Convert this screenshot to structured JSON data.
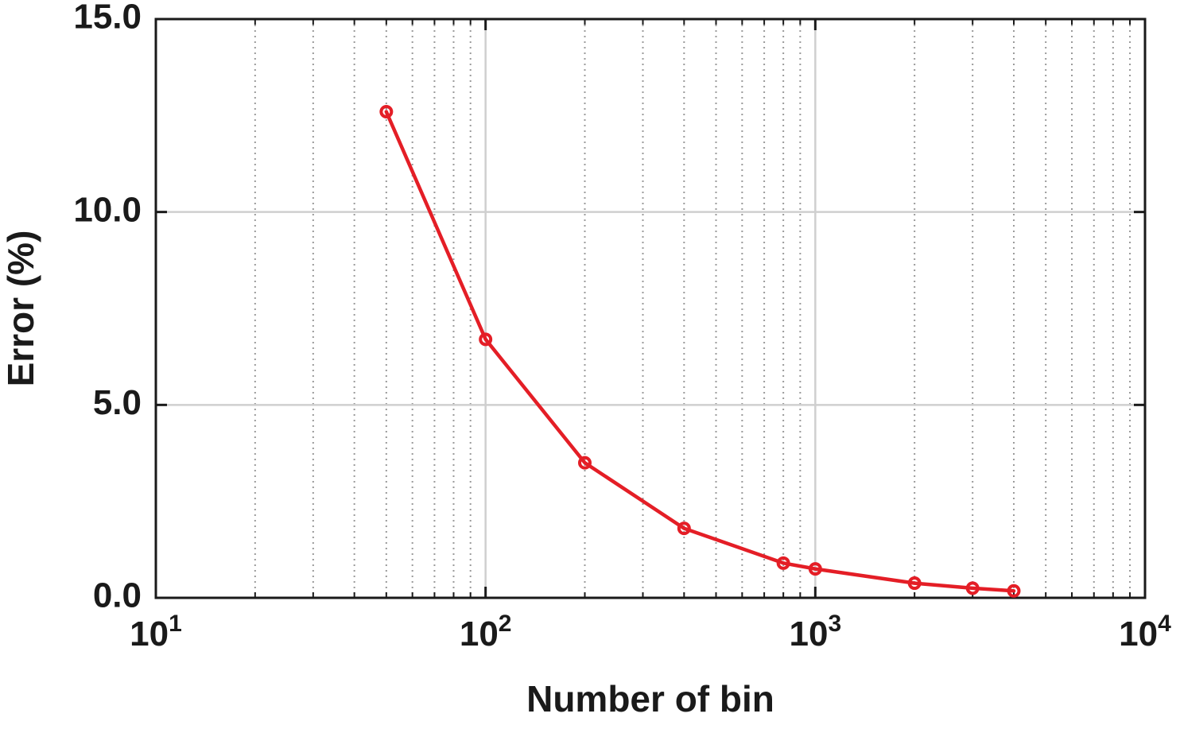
{
  "chart_data": {
    "type": "line",
    "title": "",
    "xlabel": "Number of bin",
    "ylabel": "Error (%)",
    "x_scale": "log",
    "xlim": [
      10,
      10000
    ],
    "ylim": [
      0,
      15
    ],
    "x_ticks": [
      {
        "base": "10",
        "exp": "1"
      },
      {
        "base": "10",
        "exp": "2"
      },
      {
        "base": "10",
        "exp": "3"
      },
      {
        "base": "10",
        "exp": "4"
      }
    ],
    "y_ticks": [
      "0.0",
      "5.0",
      "10.0",
      "15.0"
    ],
    "grid": true,
    "legend": "none",
    "series": [
      {
        "color": "#e41e26",
        "marker": "circle",
        "x": [
          50,
          100,
          200,
          400,
          800,
          1000,
          2000,
          3000,
          4000
        ],
        "y": [
          12.6,
          6.7,
          3.5,
          1.8,
          0.9,
          0.75,
          0.38,
          0.25,
          0.18
        ]
      }
    ]
  }
}
